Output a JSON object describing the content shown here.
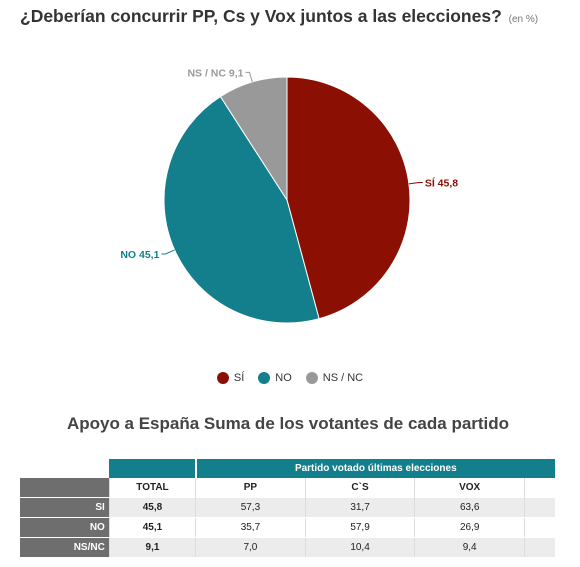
{
  "title": "¿Deberían concurrir PP, Cs y Vox juntos a las elecciones?",
  "title_unit": "(en %)",
  "chart_data": {
    "type": "pie",
    "title": "¿Deberían concurrir PP, Cs y Vox juntos a las elecciones?",
    "slices": [
      {
        "label": "SÍ",
        "value": 45.8,
        "display": "SÍ 45,8",
        "color": "#8b1003"
      },
      {
        "label": "NO",
        "value": 45.1,
        "display": "NO 45,1",
        "color": "#137f8c"
      },
      {
        "label": "NS / NC",
        "value": 9.1,
        "display": "NS / NC 9,1",
        "color": "#999999"
      }
    ],
    "legend_position": "bottom"
  },
  "legend": [
    {
      "label": "SÍ",
      "color": "#8b1003"
    },
    {
      "label": "NO",
      "color": "#137f8c"
    },
    {
      "label": "NS / NC",
      "color": "#999999"
    }
  ],
  "table": {
    "title": "Apoyo a España Suma de los votantes de cada partido",
    "group_header": "Partido votado últimas elecciones",
    "columns": [
      "TOTAL",
      "PP",
      "C`S",
      "VOX"
    ],
    "rows": [
      {
        "label": "SI",
        "values": [
          "45,8",
          "57,3",
          "31,7",
          "63,6"
        ]
      },
      {
        "label": "NO",
        "values": [
          "45,1",
          "35,7",
          "57,9",
          "26,9"
        ]
      },
      {
        "label": "NS/NC",
        "values": [
          "9,1",
          "7,0",
          "10,4",
          "9,4"
        ]
      }
    ]
  }
}
